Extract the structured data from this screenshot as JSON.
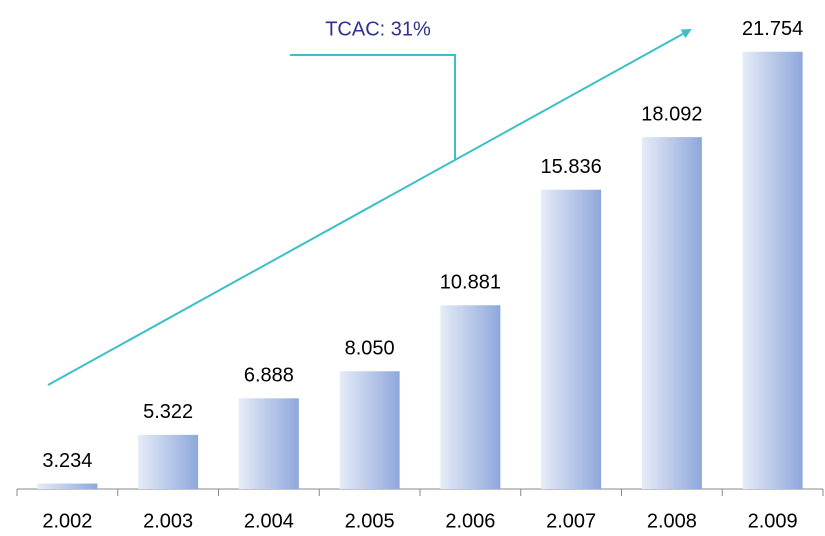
{
  "chart_data": {
    "type": "bar",
    "annotation": "TCAC: 31%",
    "categories": [
      "2.002",
      "2.003",
      "2.004",
      "2.005",
      "2.006",
      "2.007",
      "2.008",
      "2.009"
    ],
    "values": [
      3234,
      5322,
      6888,
      8050,
      10881,
      15836,
      18092,
      21754
    ],
    "value_labels": [
      "3.234",
      "5.322",
      "6.888",
      "8.050",
      "10.881",
      "15.836",
      "18.092",
      "21.754"
    ],
    "color": "#8ea7db",
    "ylim": [
      3000,
      22000
    ]
  }
}
